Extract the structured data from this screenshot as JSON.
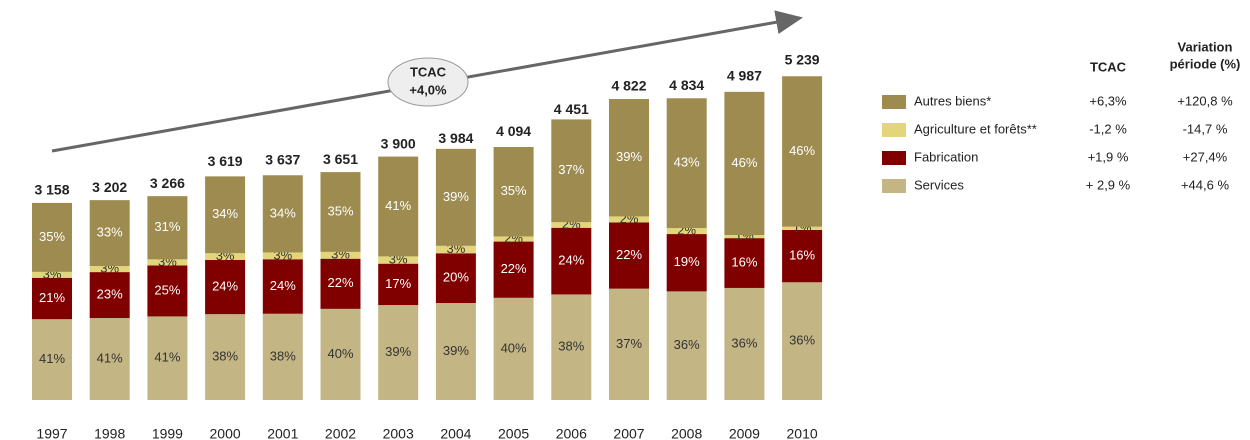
{
  "chart_data": {
    "type": "stacked_bar",
    "categories": [
      "1997",
      "1998",
      "1999",
      "2000",
      "2001",
      "2002",
      "2003",
      "2004",
      "2005",
      "2006",
      "2007",
      "2008",
      "2009",
      "2010"
    ],
    "totals": {
      "values": [
        3158,
        3202,
        3266,
        3619,
        3637,
        3651,
        3900,
        3984,
        4094,
        4451,
        4822,
        4834,
        4987,
        5239
      ],
      "value_labels": [
        "3 158",
        "3 202",
        "3 266",
        "3 619",
        "3 637",
        "3 651",
        "3 900",
        "3 984",
        "4 094",
        "4 451",
        "4 822",
        "4 834",
        "4 987",
        "5 239"
      ]
    },
    "series": [
      {
        "name": "Services",
        "color": "#c4b584",
        "text_color": "#333333",
        "tcac": "+ 2,9 %",
        "variation": "+44,6 %",
        "values": [
          41,
          41,
          41,
          38,
          38,
          40,
          39,
          39,
          40,
          38,
          37,
          36,
          36,
          36
        ],
        "value_labels": [
          "41%",
          "41%",
          "41%",
          "38%",
          "38%",
          "40%",
          "39%",
          "39%",
          "40%",
          "38%",
          "37%",
          "36%",
          "36%",
          "36%"
        ]
      },
      {
        "name": "Fabrication",
        "color": "#800000",
        "text_color": "#ffffff",
        "tcac": "+1,9 %",
        "variation": "+27,4%",
        "values": [
          21,
          23,
          25,
          24,
          24,
          22,
          17,
          20,
          22,
          24,
          22,
          19,
          16,
          16
        ],
        "value_labels": [
          "21%",
          "23%",
          "25%",
          "24%",
          "24%",
          "22%",
          "17%",
          "20%",
          "22%",
          "24%",
          "22%",
          "19%",
          "16%",
          "16%"
        ]
      },
      {
        "name": "Agriculture et forêts**",
        "color": "#e3d67a",
        "text_color": "#333333",
        "tcac": "-1,2 %",
        "variation": "-14,7 %",
        "values": [
          3,
          3,
          3,
          3,
          3,
          3,
          3,
          3,
          2,
          2,
          2,
          2,
          1,
          1
        ],
        "value_labels": [
          "3%",
          "3%",
          "3%",
          "3%",
          "3%",
          "3%",
          "3%",
          "3%",
          "2%",
          "2%",
          "2%",
          "2%",
          "1%",
          "1%"
        ]
      },
      {
        "name": "Autres biens*",
        "color": "#9e8b4f",
        "text_color": "#ffffff",
        "tcac": "+6,3%",
        "variation": "+120,8 %",
        "values": [
          35,
          33,
          31,
          34,
          34,
          35,
          41,
          39,
          35,
          37,
          39,
          43,
          46,
          46
        ],
        "value_labels": [
          "35%",
          "33%",
          "31%",
          "34%",
          "34%",
          "35%",
          "41%",
          "39%",
          "35%",
          "37%",
          "39%",
          "43%",
          "46%",
          "46%"
        ]
      }
    ],
    "annotation": [
      "TCAC",
      "+4,0%"
    ],
    "legend_headers": {
      "tcac": "TCAC",
      "variation": [
        "Variation",
        "période (%)"
      ]
    }
  }
}
